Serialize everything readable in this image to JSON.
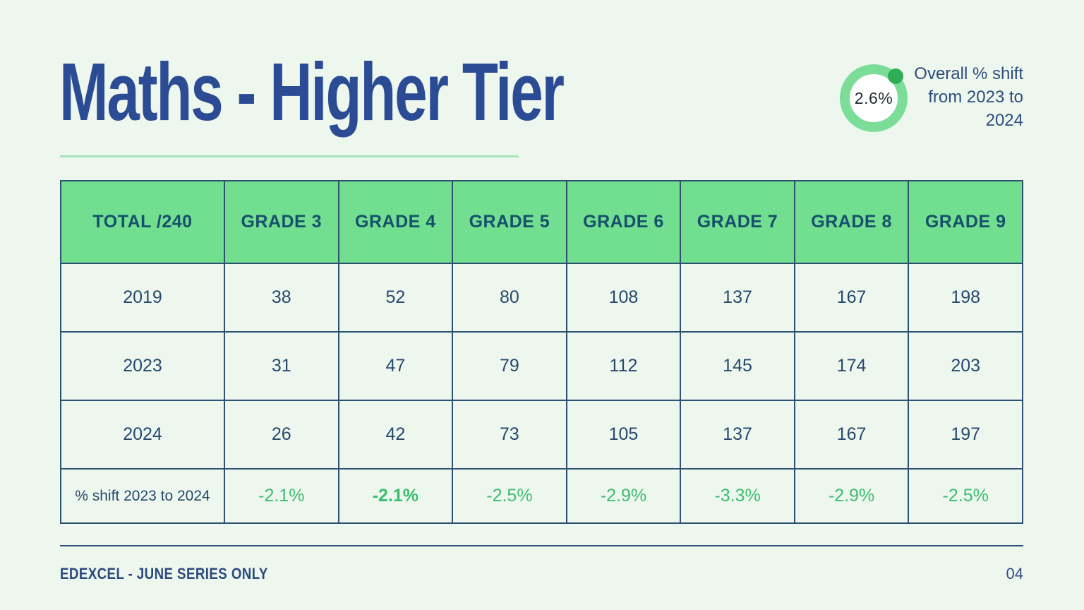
{
  "slide": {
    "title": "Maths - Higher Tier",
    "donut": {
      "value": "2.6%",
      "caption": "Overall % shift from 2023 to 2024"
    },
    "footer": {
      "left_text": "EDEXCEL - JUNE SERIES ONLY",
      "page_number": "04"
    }
  },
  "table": {
    "header": [
      "TOTAL /240",
      "GRADE 3",
      "GRADE 4",
      "GRADE 5",
      "GRADE 6",
      "GRADE 7",
      "GRADE 8",
      "GRADE 9"
    ],
    "rows": [
      {
        "label": "2019",
        "values": [
          "38",
          "52",
          "80",
          "108",
          "137",
          "167",
          "198"
        ]
      },
      {
        "label": "2023",
        "values": [
          "31",
          "47",
          "79",
          "112",
          "145",
          "174",
          "203"
        ]
      },
      {
        "label": "2024",
        "values": [
          "26",
          "42",
          "73",
          "105",
          "137",
          "167",
          "197"
        ]
      },
      {
        "label": "% shift 2023 to 2024",
        "values": [
          "-2.1%",
          "-2.1%",
          "-2.5%",
          "-2.9%",
          "-3.3%",
          "-2.9%",
          "-2.5%"
        ],
        "green": true,
        "bold_value_index": 1
      }
    ]
  },
  "colors": {
    "background": "#eef7ed",
    "title_blue": "#2b4c95",
    "table_border_navy": "#2d5170",
    "table_text_navy": "#26496e",
    "header_green": "#72de90",
    "header_text": "#16506b",
    "pct_green": "#3bbd70",
    "underline_green": "#a3e4b6",
    "donut_ring_green": "#7cdd98",
    "donut_dot_green": "#2fae57"
  }
}
